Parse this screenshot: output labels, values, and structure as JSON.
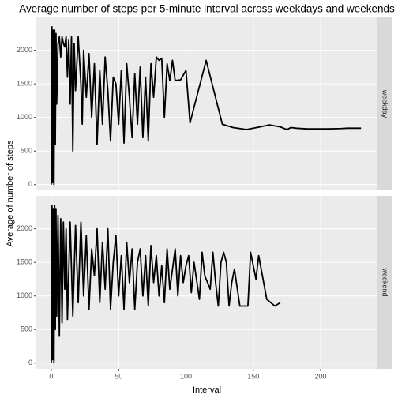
{
  "chart_data": {
    "type": "line",
    "title": "Average number of steps per 5-minute interval across weekdays and weekends",
    "x_label": "Interval",
    "y_label": "Average of number of steps",
    "xlim": [
      -11.1,
      242.2
    ],
    "xticks": [
      0,
      50,
      100,
      150,
      200
    ],
    "ylim": [
      -85,
      2490
    ],
    "yticks": [
      0,
      500,
      1000,
      1500,
      2000
    ],
    "grid": true,
    "series": [
      {
        "name": "weekday",
        "color": "#000000",
        "x": [
          0,
          0.5,
          1,
          1.5,
          2,
          2.5,
          3,
          3.5,
          4,
          5,
          6,
          7,
          8,
          9,
          10,
          11,
          12,
          13,
          14,
          15,
          16,
          17,
          18,
          20,
          22,
          23,
          24,
          26,
          28,
          30,
          32,
          34,
          36,
          38,
          40,
          42,
          44,
          46,
          48,
          50,
          52,
          54,
          56,
          58,
          60,
          62,
          64,
          66,
          68,
          70,
          72,
          74,
          76,
          78,
          80,
          82,
          84,
          86,
          88,
          90,
          92,
          96,
          100,
          103,
          115,
          127,
          135,
          145,
          155,
          162,
          170,
          175,
          178,
          182,
          190,
          205,
          215,
          220,
          230
        ],
        "values": [
          0,
          2350,
          30,
          2300,
          0,
          2300,
          600,
          2250,
          1200,
          2100,
          2200,
          1900,
          2200,
          2100,
          2050,
          2200,
          1600,
          2150,
          1200,
          2200,
          500,
          2100,
          1400,
          2200,
          1500,
          900,
          2000,
          1300,
          1950,
          1000,
          1800,
          600,
          1700,
          900,
          1900,
          1400,
          650,
          1600,
          1500,
          900,
          1700,
          620,
          1800,
          1300,
          700,
          1650,
          900,
          1750,
          700,
          1600,
          650,
          1800,
          1300,
          1900,
          1850,
          1880,
          1000,
          1800,
          1550,
          1850,
          1550,
          1560,
          1700,
          920,
          1850,
          900,
          850,
          820,
          860,
          890,
          860,
          820,
          850,
          840,
          830,
          830,
          835,
          840,
          840
        ]
      },
      {
        "name": "weekend",
        "color": "#000000",
        "x": [
          0,
          0.5,
          1,
          1.5,
          2,
          2.5,
          3,
          3.5,
          4,
          5,
          6,
          7,
          8,
          9,
          10,
          11,
          12,
          14,
          16,
          18,
          20,
          22,
          24,
          26,
          28,
          30,
          32,
          34,
          36,
          38,
          40,
          42,
          44,
          46,
          48,
          50,
          52,
          54,
          56,
          58,
          60,
          62,
          64,
          66,
          68,
          70,
          72,
          74,
          76,
          78,
          80,
          82,
          84,
          86,
          88,
          90,
          92,
          94,
          96,
          98,
          100,
          102,
          104,
          106,
          110,
          112,
          114,
          118,
          120,
          122,
          124,
          126,
          128,
          130,
          132,
          134,
          136,
          140,
          146,
          148,
          150,
          152,
          154,
          160,
          166,
          170
        ],
        "values": [
          0,
          2350,
          50,
          2300,
          0,
          2350,
          500,
          2300,
          700,
          2200,
          400,
          2150,
          600,
          2100,
          1100,
          2000,
          650,
          2100,
          700,
          2050,
          900,
          2100,
          1000,
          1900,
          800,
          1700,
          1300,
          2000,
          900,
          1800,
          1100,
          2000,
          800,
          1500,
          1900,
          1000,
          1600,
          800,
          1800,
          1200,
          1700,
          800,
          1500,
          1700,
          1000,
          1600,
          850,
          1750,
          1200,
          1600,
          1000,
          1450,
          900,
          1700,
          1100,
          1400,
          1700,
          1000,
          1600,
          1200,
          1450,
          1600,
          1050,
          1500,
          950,
          1650,
          1300,
          1100,
          1650,
          1200,
          850,
          1500,
          1650,
          1500,
          850,
          1200,
          1400,
          850,
          850,
          1650,
          1450,
          1250,
          1600,
          950,
          850,
          900
        ]
      }
    ]
  }
}
